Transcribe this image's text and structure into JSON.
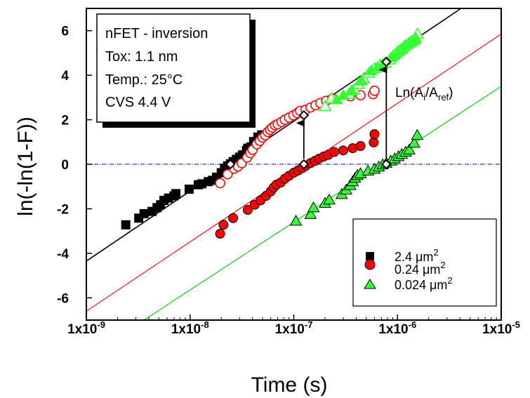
{
  "chart_data": {
    "type": "scatter",
    "title": "",
    "xlabel": "Time (s)",
    "ylabel": "ln(-ln(1-F))",
    "x_scale": "log",
    "xlim": [
      1e-09,
      1e-05
    ],
    "ylim": [
      -7,
      7
    ],
    "x_ticks": [
      1e-09,
      1e-08,
      1e-07,
      1e-06,
      1e-05
    ],
    "x_tick_labels": [
      {
        "base": "1x10",
        "exp": "-9"
      },
      {
        "base": "1x10",
        "exp": "-8"
      },
      {
        "base": "1x10",
        "exp": "-7"
      },
      {
        "base": "1x10",
        "exp": "-6"
      },
      {
        "base": "1x10",
        "exp": "-5"
      }
    ],
    "y_ticks": [
      -6,
      -4,
      -2,
      0,
      2,
      4,
      6
    ],
    "y_tick_labels": [
      "-6",
      "-4",
      "-2",
      "0",
      "2",
      "4",
      "6"
    ],
    "reference_line": {
      "y": 0,
      "color": "#0000cc",
      "style": "dash-dot"
    },
    "info_box": [
      "nFET - inversion",
      "Tox: 1.1 nm",
      "Temp.: 25°C",
      "CVS 4.4 V"
    ],
    "legend": {
      "position": "bottom-right",
      "entries": [
        {
          "label": "2.4",
          "unit_mu": "μ",
          "unit_m": "m",
          "unit_exp": "2",
          "marker": "square",
          "color": "#000000"
        },
        {
          "label": "0.24",
          "unit_mu": "μ",
          "unit_m": "m",
          "unit_exp": "2",
          "marker": "circle",
          "color": "#ff0000"
        },
        {
          "label": "0.024",
          "unit_mu": "μ",
          "unit_m": "m",
          "unit_exp": "2",
          "marker": "triangle",
          "color": "#00ff00"
        }
      ]
    },
    "annotation": {
      "base": "Ln(A",
      "sub1": "i",
      "mid": "/A",
      "sub2": "ref",
      "end": ")"
    },
    "fit_lines": [
      {
        "color": "#000000",
        "x": [
          1e-09,
          4.1e-06
        ],
        "y": [
          -4.35,
          7.0
        ]
      },
      {
        "color": "#ff0000",
        "x": [
          1e-09,
          1e-05
        ],
        "y": [
          -6.6,
          5.85
        ]
      },
      {
        "color": "#00cc00",
        "x": [
          3.6e-09,
          1e-05
        ],
        "y": [
          -7.0,
          3.5
        ]
      }
    ],
    "series": [
      {
        "name": "2.4 μm2",
        "marker": "square",
        "fill": "#000000",
        "stroke": "#000000",
        "points": [
          [
            2.4e-09,
            -2.72
          ],
          [
            3.2e-09,
            -2.42
          ],
          [
            3.6e-09,
            -2.22
          ],
          [
            4.3e-09,
            -2.12
          ],
          [
            4.8e-09,
            -1.95
          ],
          [
            5.2e-09,
            -1.82
          ],
          [
            5.6e-09,
            -1.62
          ],
          [
            6.2e-09,
            -1.52
          ],
          [
            7e-09,
            -1.42
          ],
          [
            7.3e-09,
            -1.32
          ],
          [
            9.8e-09,
            -1.12
          ],
          [
            1.2e-08,
            -0.92
          ],
          [
            1.3e-08,
            -0.88
          ],
          [
            1.5e-08,
            -0.78
          ],
          [
            1.65e-08,
            -0.72
          ],
          [
            1.8e-08,
            -0.58
          ],
          [
            2e-08,
            -0.38
          ],
          [
            2.15e-08,
            -0.18
          ],
          [
            2.3e-08,
            -0.08
          ],
          [
            2.45e-08,
            0.02
          ],
          [
            2.6e-08,
            0.12
          ],
          [
            2.8e-08,
            0.22
          ],
          [
            3e-08,
            0.32
          ],
          [
            3.2e-08,
            0.42
          ],
          [
            3.5e-08,
            0.62
          ],
          [
            3.6e-08,
            0.72
          ],
          [
            3.85e-08,
            0.78
          ],
          [
            4.1e-08,
            1.02
          ],
          [
            4.5e-08,
            1.22
          ],
          [
            4.9e-08,
            1.32
          ]
        ]
      },
      {
        "name": "0.24 μm2 (shifted)",
        "marker": "circle",
        "fill": "#ffffff",
        "stroke": "#ff0000",
        "points": [
          [
            1.95e-08,
            -0.85
          ],
          [
            2.3e-08,
            -0.45
          ],
          [
            2.65e-08,
            -0.2
          ],
          [
            2.9e-08,
            -0.1
          ],
          [
            3.15e-08,
            0.05
          ],
          [
            3.55e-08,
            0.3
          ],
          [
            3.8e-08,
            0.5
          ],
          [
            4e-08,
            0.65
          ],
          [
            4.4e-08,
            0.9
          ],
          [
            4.7e-08,
            1.05
          ],
          [
            5e-08,
            1.2
          ],
          [
            5.3e-08,
            1.3
          ],
          [
            5.6e-08,
            1.45
          ],
          [
            5.9e-08,
            1.55
          ],
          [
            6.2e-08,
            1.65
          ],
          [
            6.6e-08,
            1.75
          ],
          [
            7e-08,
            1.8
          ],
          [
            7.6e-08,
            1.9
          ],
          [
            8.2e-08,
            2.0
          ],
          [
            9e-08,
            2.1
          ],
          [
            9.9e-08,
            2.2
          ],
          [
            1.08e-07,
            2.3
          ],
          [
            1.15e-07,
            2.4
          ],
          [
            1.3e-07,
            2.45
          ],
          [
            1.45e-07,
            2.55
          ],
          [
            1.62e-07,
            2.65
          ],
          [
            1.8e-07,
            2.75
          ],
          [
            2.05e-07,
            2.85
          ],
          [
            2.35e-07,
            2.95
          ],
          [
            3.5e-07,
            3.05
          ],
          [
            4.4e-07,
            3.1
          ],
          [
            5.8e-07,
            3.15
          ],
          [
            6e-07,
            3.3
          ]
        ]
      },
      {
        "name": "0.24 μm2",
        "marker": "circle",
        "fill": "#ff0000",
        "stroke": "#000000",
        "points": [
          [
            1.95e-08,
            -3.12
          ],
          [
            2.1e-08,
            -2.72
          ],
          [
            2.6e-08,
            -2.42
          ],
          [
            3.6e-08,
            -2.05
          ],
          [
            4.2e-08,
            -1.82
          ],
          [
            4.8e-08,
            -1.62
          ],
          [
            5.4e-08,
            -1.42
          ],
          [
            6e-08,
            -1.22
          ],
          [
            6.4e-08,
            -1.05
          ],
          [
            6.8e-08,
            -0.92
          ],
          [
            7.5e-08,
            -0.82
          ],
          [
            8.2e-08,
            -0.65
          ],
          [
            9e-08,
            -0.52
          ],
          [
            1e-07,
            -0.38
          ],
          [
            1.1e-07,
            -0.28
          ],
          [
            1.2e-07,
            -0.18
          ],
          [
            1.3e-07,
            -0.08
          ],
          [
            1.45e-07,
            0.05
          ],
          [
            1.6e-07,
            0.15
          ],
          [
            1.75e-07,
            0.25
          ],
          [
            1.95e-07,
            0.35
          ],
          [
            2.15e-07,
            0.42
          ],
          [
            2.45e-07,
            0.55
          ],
          [
            3e-07,
            0.62
          ],
          [
            3.7e-07,
            0.72
          ],
          [
            4.4e-07,
            0.82
          ],
          [
            5.9e-07,
            0.98
          ],
          [
            6e-07,
            1.35
          ]
        ]
      },
      {
        "name": "0.024 μm2 (shifted)",
        "marker": "triangle",
        "fill": "#ffffff",
        "stroke": "#33ff33",
        "points": [
          [
            2e-07,
            2.6
          ],
          [
            2.3e-07,
            2.95
          ],
          [
            3.4e-07,
            3.15
          ],
          [
            3.8e-07,
            3.35
          ],
          [
            4.2e-07,
            3.6
          ],
          [
            4.7e-07,
            3.85
          ],
          [
            5.3e-07,
            4.1
          ],
          [
            6e-07,
            4.3
          ],
          [
            6.8e-07,
            4.45
          ],
          [
            7.6e-07,
            4.55
          ],
          [
            8.4e-07,
            4.7
          ],
          [
            9.2e-07,
            4.9
          ],
          [
            1e-06,
            5.05
          ],
          [
            1.08e-06,
            5.15
          ],
          [
            1.16e-06,
            5.3
          ],
          [
            1.26e-06,
            5.4
          ],
          [
            1.35e-06,
            5.5
          ],
          [
            1.45e-06,
            5.6
          ],
          [
            1.56e-06,
            5.85
          ]
        ]
      },
      {
        "name": "0.024 μm2 (shifted, filled)",
        "marker": "triangle",
        "fill": "#33ff33",
        "stroke": "#33ff33",
        "points": [
          [
            2.6e-07,
            2.9
          ],
          [
            3e-07,
            3.1
          ],
          [
            3.6e-07,
            3.3
          ],
          [
            4.5e-07,
            3.75
          ],
          [
            5.6e-07,
            4.2
          ],
          [
            6.4e-07,
            4.35
          ],
          [
            7.2e-07,
            4.5
          ],
          [
            8.8e-07,
            4.8
          ],
          [
            9.6e-07,
            4.95
          ],
          [
            1.04e-06,
            5.1
          ],
          [
            1.12e-06,
            5.2
          ],
          [
            1.2e-06,
            5.35
          ],
          [
            1.3e-06,
            5.45
          ],
          [
            1.4e-06,
            5.55
          ],
          [
            1.5e-06,
            5.65
          ]
        ]
      },
      {
        "name": "0.024 μm2",
        "marker": "triangle",
        "fill": "#33ff33",
        "stroke": "#000000",
        "points": [
          [
            1.05e-07,
            -2.55
          ],
          [
            1.45e-07,
            -2.25
          ],
          [
            1.55e-07,
            -1.95
          ],
          [
            2e-07,
            -1.75
          ],
          [
            2.2e-07,
            -1.6
          ],
          [
            2.9e-07,
            -1.35
          ],
          [
            3.2e-07,
            -1.15
          ],
          [
            3.5e-07,
            -0.95
          ],
          [
            3.7e-07,
            -0.78
          ],
          [
            3.9e-07,
            -0.62
          ],
          [
            4.1e-07,
            -0.5
          ],
          [
            4.4e-07,
            -0.42
          ],
          [
            5.2e-07,
            -0.3
          ],
          [
            6e-07,
            -0.22
          ],
          [
            6.6e-07,
            -0.12
          ],
          [
            7.2e-07,
            -0.02
          ],
          [
            7.8e-07,
            0.05
          ],
          [
            8.6e-07,
            0.15
          ],
          [
            9.4e-07,
            0.25
          ],
          [
            1.02e-06,
            0.35
          ],
          [
            1.1e-06,
            0.45
          ],
          [
            1.2e-06,
            0.55
          ],
          [
            1.3e-06,
            0.65
          ],
          [
            1.45e-06,
            0.95
          ],
          [
            1.55e-06,
            1.3
          ]
        ]
      }
    ],
    "reference_points": [
      [
        2.45e-08,
        0.0
      ],
      [
        1.25e-07,
        2.2
      ],
      [
        1.25e-07,
        0.0
      ],
      [
        7.8e-07,
        4.6
      ],
      [
        7.8e-07,
        0.0
      ]
    ],
    "arrows": [
      {
        "from": [
          1.25e-07,
          0.25
        ],
        "to": [
          1.25e-07,
          1.85
        ]
      },
      {
        "from": [
          7.8e-07,
          0.25
        ],
        "to": [
          7.8e-07,
          4.25
        ]
      }
    ]
  }
}
